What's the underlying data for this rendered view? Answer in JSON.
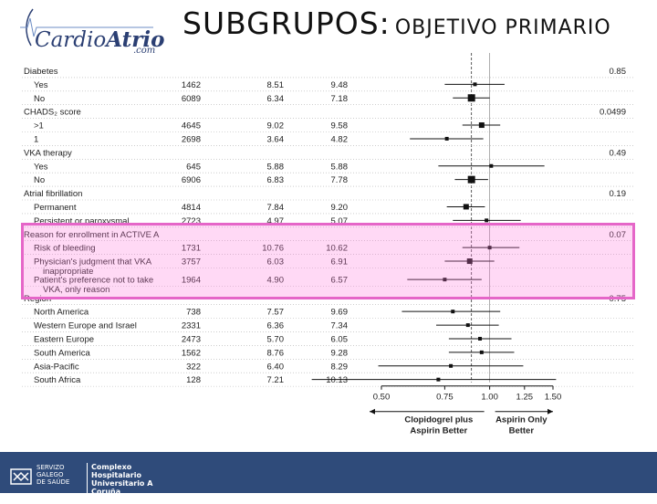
{
  "header": {
    "logo_text_main": "Cardio",
    "logo_text_accent": "Atrio",
    "logo_sub": ".com",
    "title_part1": "SUBGRUPOS:",
    "title_part2": "OBJETIVO PRIMARIO"
  },
  "footer": {
    "sergas_line1": "SERVIZO",
    "sergas_line2": "GALEGO",
    "sergas_line3": "de SAÚDE",
    "hospital_line1": "Complexo Hospitalario",
    "hospital_line2": "Universitario A Coruña",
    "hospital_line3": "A Coruña"
  },
  "colors": {
    "highlight_border": "#e566c8",
    "highlight_fill": "rgba(255,120,220,0.28)",
    "footer_bg": "#2f4b7a",
    "header_text": "#111111",
    "logo_color": "#2b3f73"
  },
  "chart_data": {
    "type": "forest",
    "xscale": "log",
    "xlim": [
      0.5,
      1.5
    ],
    "xticks": [
      "0.50",
      "0.75",
      "1.00",
      "1.25",
      "1.50"
    ],
    "x_label_left": [
      "Clopidogrel plus",
      "Aspirin Better"
    ],
    "x_label_right": [
      "Aspirin Only",
      "Better"
    ],
    "rows": [
      {
        "label": "Diabetes",
        "header": true,
        "p": "0.85"
      },
      {
        "label": "Yes",
        "n": "1462",
        "c": "8.51",
        "a": "9.48",
        "hr": 0.91,
        "lo": 0.75,
        "hi": 1.1
      },
      {
        "label": "No",
        "n": "6089",
        "c": "6.34",
        "a": "7.18",
        "hr": 0.89,
        "lo": 0.79,
        "hi": 1.0,
        "big": true
      },
      {
        "label": "CHADS₂ score",
        "header": true,
        "p": "0.0499"
      },
      {
        "label": ">1",
        "n": "4645",
        "c": "9.02",
        "a": "9.58",
        "hr": 0.95,
        "lo": 0.84,
        "hi": 1.07
      },
      {
        "label": "1",
        "n": "2698",
        "c": "3.64",
        "a": "4.82",
        "hr": 0.76,
        "lo": 0.6,
        "hi": 0.96
      },
      {
        "label": "VKA therapy",
        "header": true,
        "p": "0.49"
      },
      {
        "label": "Yes",
        "n": "645",
        "c": "5.88",
        "a": "5.88",
        "hr": 1.01,
        "lo": 0.72,
        "hi": 1.42
      },
      {
        "label": "No",
        "n": "6906",
        "c": "6.83",
        "a": "7.78",
        "hr": 0.89,
        "lo": 0.8,
        "hi": 0.99,
        "big": true
      },
      {
        "label": "Atrial fibrillation",
        "header": true,
        "p": "0.19"
      },
      {
        "label": "Permanent",
        "n": "4814",
        "c": "7.84",
        "a": "9.20",
        "hr": 0.86,
        "lo": 0.76,
        "hi": 0.97
      },
      {
        "label": "Persistent or paroxysmal",
        "n": "2723",
        "c": "4.97",
        "a": "5.07",
        "hr": 0.98,
        "lo": 0.79,
        "hi": 1.22
      },
      {
        "label": "Reason for enrollment in ACTIVE A",
        "header": true,
        "p": "0.07"
      },
      {
        "label": "Risk of bleeding",
        "n": "1731",
        "c": "10.76",
        "a": "10.62",
        "hr": 1.0,
        "lo": 0.84,
        "hi": 1.21
      },
      {
        "label": "Physician's judgment that VKA",
        "label2": "inappropriate",
        "n": "3757",
        "c": "6.03",
        "a": "6.91",
        "hr": 0.88,
        "lo": 0.75,
        "hi": 1.03
      },
      {
        "label": "Patient's preference not to take",
        "label2": "VKA, only reason",
        "n": "1964",
        "c": "4.90",
        "a": "6.57",
        "hr": 0.75,
        "lo": 0.59,
        "hi": 0.95
      },
      {
        "label": "Region",
        "header": true,
        "p": "0.75"
      },
      {
        "label": "North America",
        "n": "738",
        "c": "7.57",
        "a": "9.69",
        "hr": 0.79,
        "lo": 0.57,
        "hi": 1.07
      },
      {
        "label": "Western Europe and Israel",
        "n": "2331",
        "c": "6.36",
        "a": "7.34",
        "hr": 0.87,
        "lo": 0.71,
        "hi": 1.06
      },
      {
        "label": "Eastern Europe",
        "n": "2473",
        "c": "5.70",
        "a": "6.05",
        "hr": 0.94,
        "lo": 0.77,
        "hi": 1.15
      },
      {
        "label": "South America",
        "n": "1562",
        "c": "8.76",
        "a": "9.28",
        "hr": 0.95,
        "lo": 0.77,
        "hi": 1.17
      },
      {
        "label": "Asia-Pacific",
        "n": "322",
        "c": "6.40",
        "a": "8.29",
        "hr": 0.78,
        "lo": 0.49,
        "hi": 1.24
      },
      {
        "label": "South Africa",
        "n": "128",
        "c": "7.21",
        "a": "10.13",
        "hr": 0.72,
        "lo": 0.32,
        "hi": 1.53
      }
    ]
  }
}
